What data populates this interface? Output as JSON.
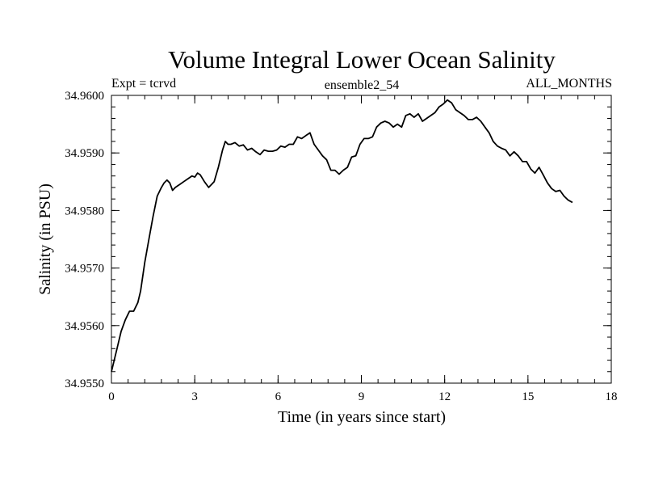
{
  "chart_data": {
    "type": "line",
    "title": "Volume Integral Lower Ocean Salinity",
    "subtitle_left": "Expt = tcrvd",
    "subtitle_center": "ensemble2_54",
    "subtitle_right": "ALL_MONTHS",
    "xlabel": "Time (in years since start)",
    "ylabel": "Salinity (in PSU)",
    "xlim": [
      0,
      18
    ],
    "ylim": [
      34.955,
      34.96
    ],
    "x_ticks": [
      0,
      3,
      6,
      9,
      12,
      15,
      18
    ],
    "x_tick_labels": [
      "0",
      "3",
      "6",
      "9",
      "12",
      "15",
      "18"
    ],
    "y_ticks": [
      34.955,
      34.956,
      34.957,
      34.958,
      34.959,
      34.96
    ],
    "y_tick_labels": [
      "34.9550",
      "34.9560",
      "34.9570",
      "34.9580",
      "34.9590",
      "34.9600"
    ],
    "x_minor_step": 0.6,
    "y_minor_step": 0.0002,
    "grid": false,
    "series": [
      {
        "name": "salinity",
        "color": "#000000",
        "x": [
          0.0,
          0.2,
          0.35,
          0.5,
          0.65,
          0.8,
          0.95,
          1.05,
          1.2,
          1.35,
          1.5,
          1.65,
          1.8,
          1.9,
          2.0,
          2.1,
          2.2,
          2.3,
          2.45,
          2.6,
          2.75,
          2.9,
          3.0,
          3.1,
          3.2,
          3.35,
          3.5,
          3.6,
          3.7,
          3.85,
          4.0,
          4.1,
          4.2,
          4.3,
          4.45,
          4.6,
          4.75,
          4.9,
          5.05,
          5.2,
          5.35,
          5.5,
          5.65,
          5.8,
          5.95,
          6.1,
          6.25,
          6.4,
          6.55,
          6.7,
          6.85,
          7.0,
          7.15,
          7.3,
          7.45,
          7.6,
          7.75,
          7.9,
          8.05,
          8.2,
          8.35,
          8.5,
          8.65,
          8.8,
          8.95,
          9.1,
          9.25,
          9.4,
          9.55,
          9.7,
          9.85,
          10.0,
          10.15,
          10.3,
          10.45,
          10.6,
          10.75,
          10.9,
          11.05,
          11.2,
          11.35,
          11.5,
          11.65,
          11.8,
          11.95,
          12.1,
          12.25,
          12.4,
          12.55,
          12.7,
          12.85,
          13.0,
          13.15,
          13.3,
          13.45,
          13.6,
          13.75,
          13.9,
          14.05,
          14.2,
          14.35,
          14.5,
          14.65,
          14.8,
          14.95,
          15.1,
          15.25,
          15.4,
          15.55,
          15.7,
          15.85,
          16.0,
          16.15,
          16.3,
          16.45,
          16.6
        ],
        "y": [
          34.9552,
          34.9556,
          34.9559,
          34.9561,
          34.95625,
          34.95625,
          34.9564,
          34.9566,
          34.9571,
          34.9575,
          34.9579,
          34.95825,
          34.9584,
          34.95848,
          34.95853,
          34.95848,
          34.95835,
          34.9584,
          34.95845,
          34.9585,
          34.95855,
          34.9586,
          34.95858,
          34.95865,
          34.95862,
          34.9585,
          34.9584,
          34.95845,
          34.9585,
          34.95875,
          34.95905,
          34.9592,
          34.95915,
          34.95915,
          34.95918,
          34.95912,
          34.95914,
          34.95905,
          34.95908,
          34.95902,
          34.95897,
          34.95905,
          34.95903,
          34.95903,
          34.95905,
          34.95912,
          34.9591,
          34.95915,
          34.95915,
          34.95928,
          34.95925,
          34.9593,
          34.95935,
          34.95915,
          34.95905,
          34.95895,
          34.95888,
          34.9587,
          34.9587,
          34.95863,
          34.9587,
          34.95875,
          34.95893,
          34.95895,
          34.95915,
          34.95925,
          34.95925,
          34.95928,
          34.95945,
          34.95952,
          34.95955,
          34.95952,
          34.95945,
          34.9595,
          34.95945,
          34.95965,
          34.95968,
          34.95962,
          34.95968,
          34.95955,
          34.9596,
          34.95965,
          34.9597,
          34.9598,
          34.95985,
          34.95992,
          34.95987,
          34.95975,
          34.9597,
          34.95965,
          34.95958,
          34.95958,
          34.95962,
          34.95955,
          34.95945,
          34.95935,
          34.9592,
          34.95912,
          34.95908,
          34.95905,
          34.95895,
          34.95902,
          34.95895,
          34.95885,
          34.95885,
          34.95872,
          34.95865,
          34.95875,
          34.95862,
          34.95848,
          34.95838,
          34.95833,
          34.95835,
          34.95825,
          34.95818,
          34.95814
        ]
      }
    ]
  }
}
